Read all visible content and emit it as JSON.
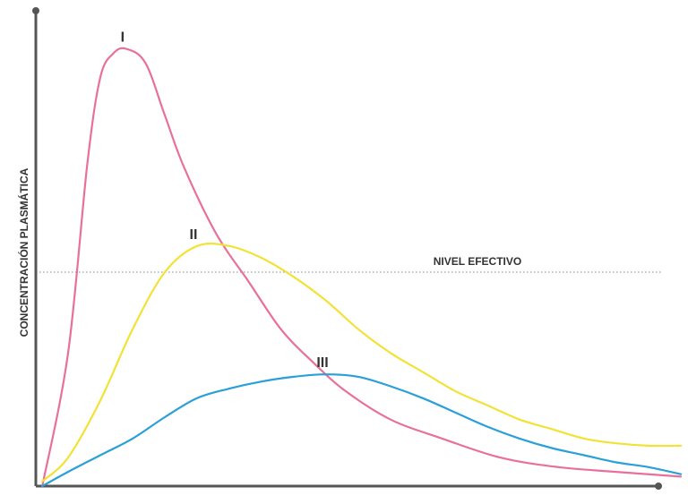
{
  "chart_data": {
    "type": "line",
    "xlabel": "",
    "ylabel": "CONCENTRACIÓN PLASMÁTICA",
    "x_range": [
      0,
      100
    ],
    "y_range": [
      0,
      100
    ],
    "grid": false,
    "reference_line": {
      "label": "NIVEL EFECTIVO",
      "y": 45
    },
    "series": [
      {
        "name": "I",
        "color": "#e8709c",
        "x": [
          1,
          5,
          8,
          10,
          12,
          14,
          17,
          20,
          23,
          28,
          33,
          38,
          43,
          48,
          55,
          63,
          72,
          81,
          90,
          100
        ],
        "y": [
          0,
          28,
          68,
          86,
          91,
          92,
          89,
          78,
          67,
          53,
          43,
          33,
          26,
          20,
          14,
          10,
          6,
          4,
          3,
          2
        ]
      },
      {
        "name": "II",
        "color": "#f2e236",
        "x": [
          1,
          5,
          10,
          15,
          20,
          25,
          30,
          35,
          40,
          45,
          50,
          55,
          60,
          65,
          70,
          75,
          80,
          85,
          90,
          95,
          100
        ],
        "y": [
          1,
          6,
          18,
          33,
          45,
          50.5,
          50.5,
          48,
          44,
          39,
          33,
          28,
          24,
          20,
          17,
          14,
          12,
          10,
          9,
          8.5,
          8.5
        ]
      },
      {
        "name": "III",
        "color": "#2a9fd8",
        "x": [
          1,
          5,
          10,
          15,
          20,
          25,
          30,
          35,
          40,
          45,
          50,
          55,
          60,
          65,
          70,
          75,
          80,
          85,
          90,
          95,
          100
        ],
        "y": [
          0,
          3,
          6.5,
          10,
          14.5,
          18.5,
          20.5,
          22,
          23,
          23.5,
          23,
          21,
          18.5,
          15.5,
          12.5,
          10,
          8,
          6.5,
          5,
          4,
          2.5
        ]
      }
    ]
  }
}
